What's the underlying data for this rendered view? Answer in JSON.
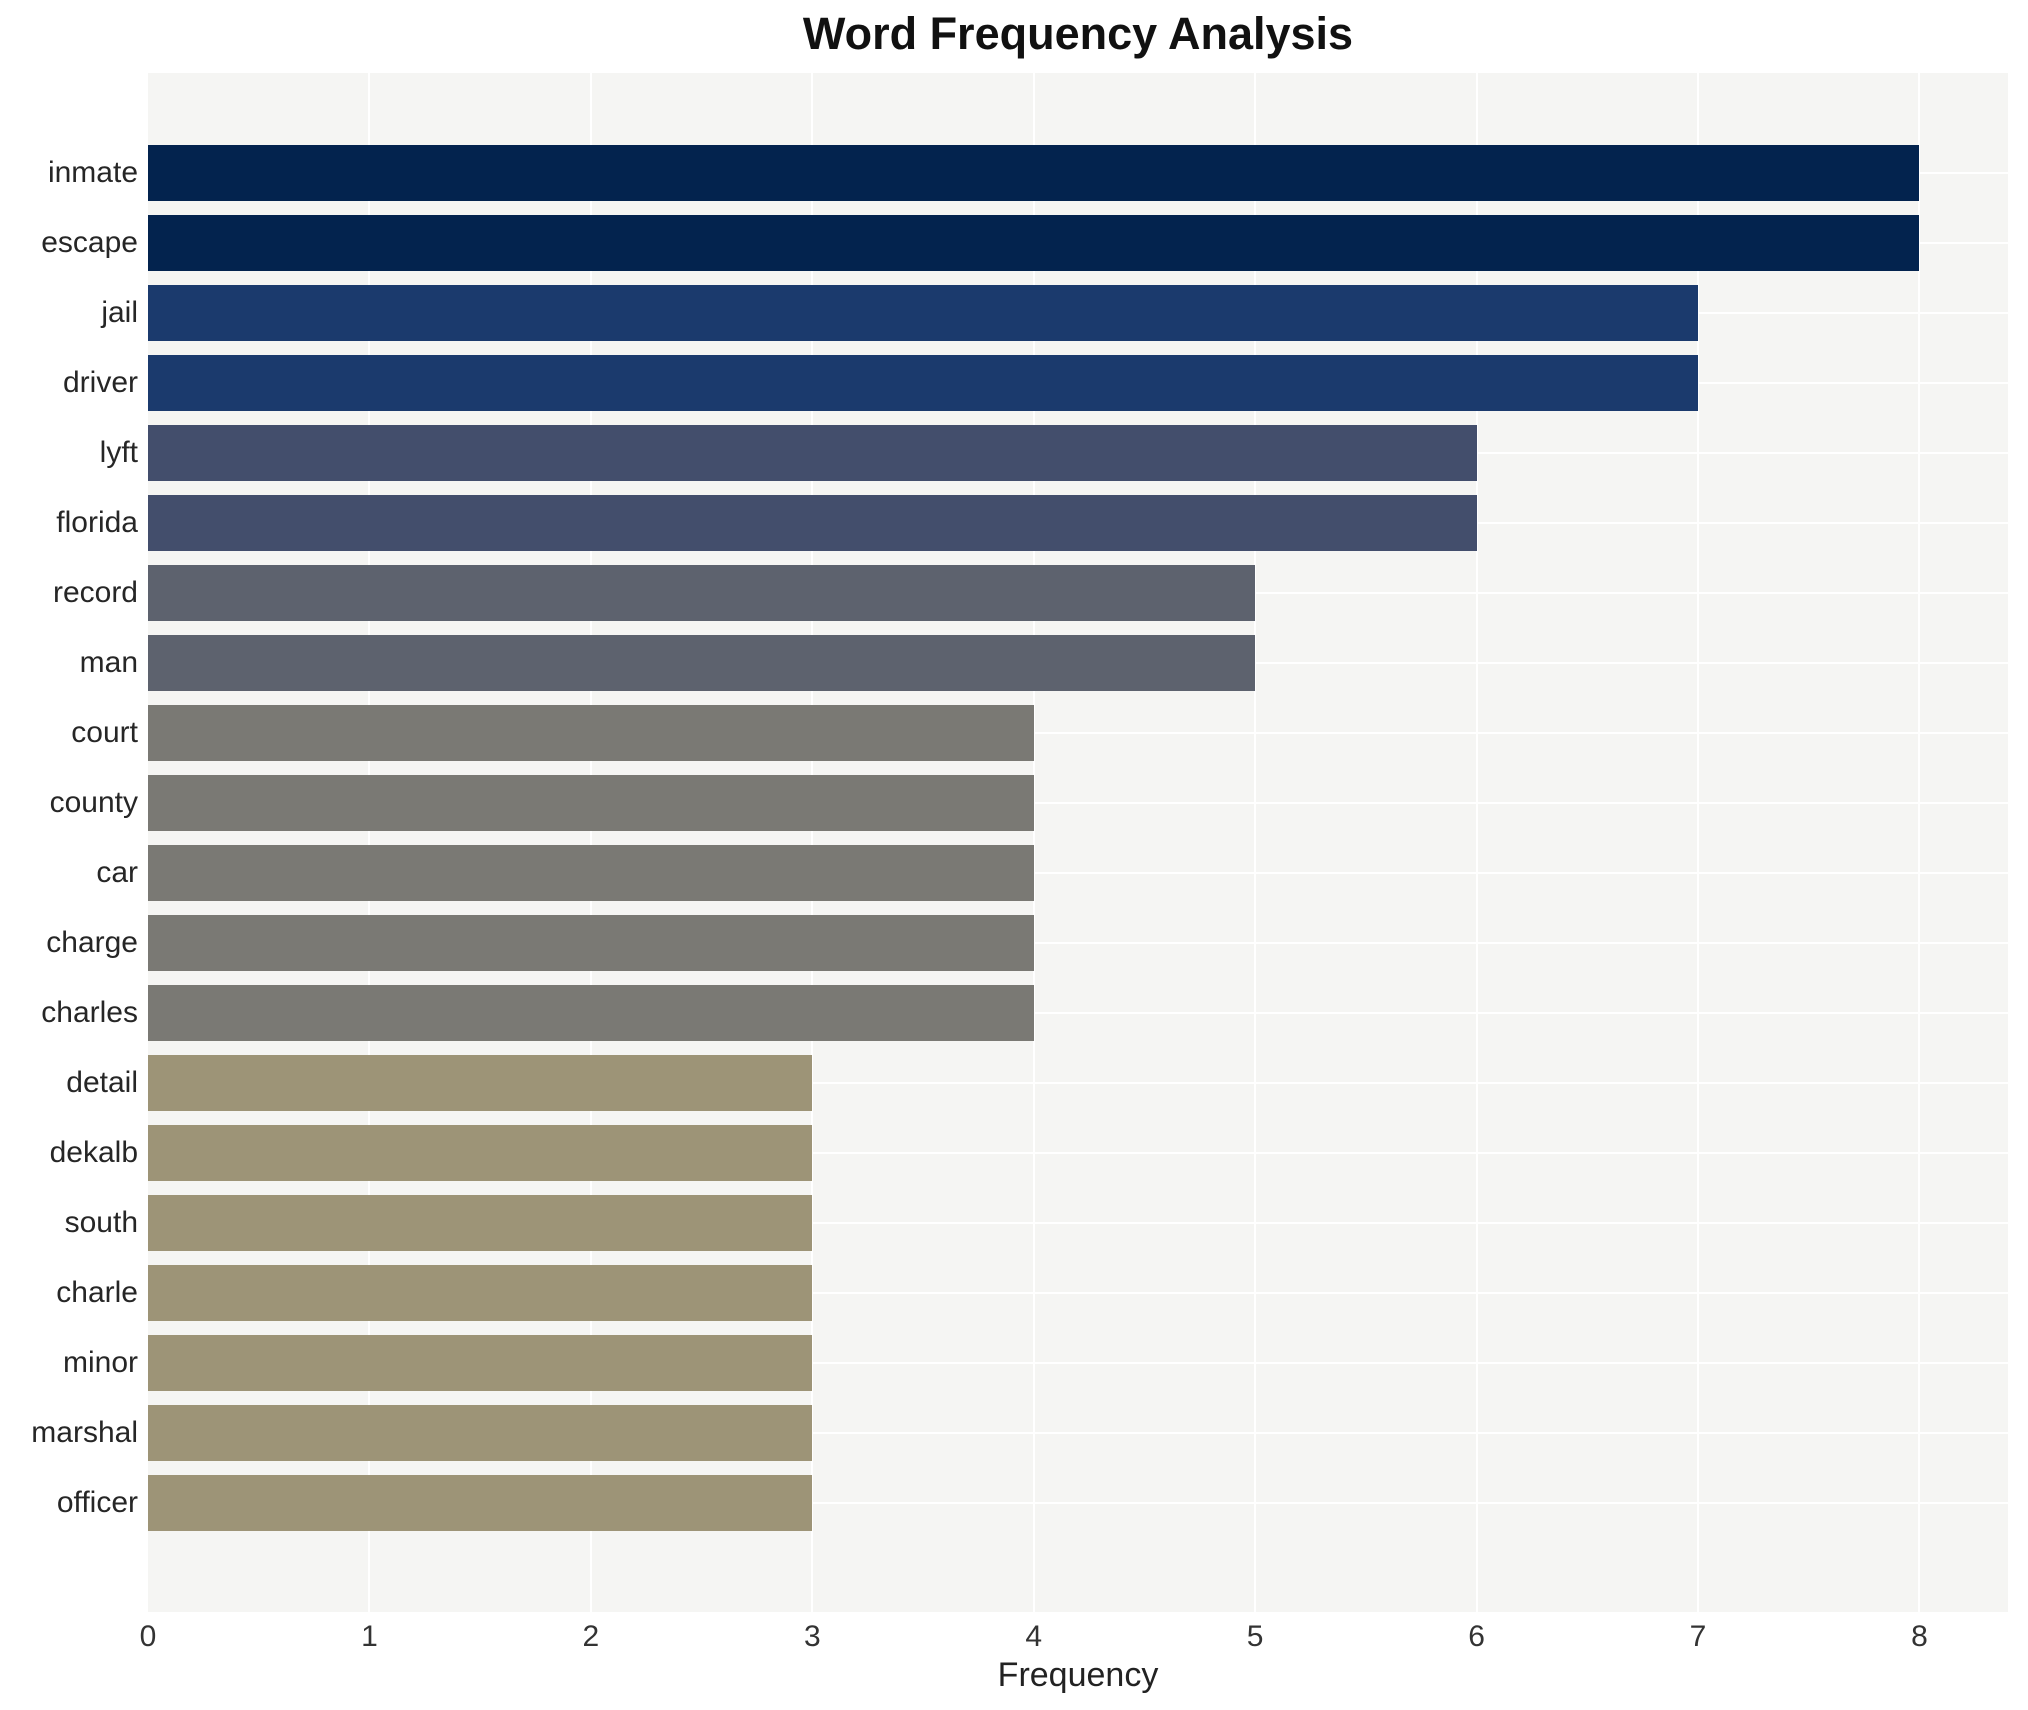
{
  "title": "Word Frequency Analysis",
  "chart_data": {
    "type": "bar",
    "orientation": "horizontal",
    "title": "Word Frequency Analysis",
    "xlabel": "Frequency",
    "ylabel": "",
    "categories": [
      "inmate",
      "escape",
      "jail",
      "driver",
      "lyft",
      "florida",
      "record",
      "man",
      "court",
      "county",
      "car",
      "charge",
      "charles",
      "detail",
      "dekalb",
      "south",
      "charle",
      "minor",
      "marshal",
      "officer"
    ],
    "values": [
      8,
      8,
      7,
      7,
      6,
      6,
      5,
      5,
      4,
      4,
      4,
      4,
      4,
      3,
      3,
      3,
      3,
      3,
      3,
      3
    ],
    "xticks": [
      0,
      1,
      2,
      3,
      4,
      5,
      6,
      7,
      8
    ],
    "xlim": [
      0,
      8.4
    ],
    "grid": true,
    "legend": false,
    "colors_by_value": {
      "8": "#03234e",
      "7": "#1b3a6d",
      "6": "#434e6c",
      "5": "#5d626e",
      "4": "#7a7974",
      "3": "#9d9477"
    },
    "plot_background": "#f5f5f3",
    "grid_color": "#ffffff",
    "title_color": "#111111",
    "label_color": "#262626",
    "tick_color": "#333333"
  }
}
